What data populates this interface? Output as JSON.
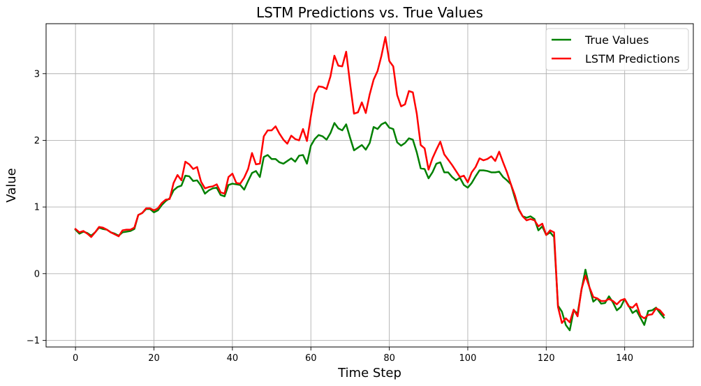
{
  "chart_data": {
    "type": "line",
    "title": "LSTM Predictions vs. True Values",
    "xlabel": "Time Step",
    "ylabel": "Value",
    "xlim": [
      -7.5,
      157.5
    ],
    "ylim": [
      -1.1,
      3.75
    ],
    "xticks": [
      0,
      20,
      40,
      60,
      80,
      100,
      120,
      140
    ],
    "yticks": [
      -1,
      0,
      1,
      2,
      3
    ],
    "grid": true,
    "legend_position": "top-right",
    "series": [
      {
        "name": "True Values",
        "color": "#008000",
        "values": [
          0.66,
          0.6,
          0.63,
          0.61,
          0.57,
          0.62,
          0.69,
          0.67,
          0.66,
          0.62,
          0.6,
          0.57,
          0.62,
          0.63,
          0.64,
          0.67,
          0.88,
          0.91,
          0.97,
          0.97,
          0.92,
          0.95,
          1.03,
          1.09,
          1.13,
          1.25,
          1.3,
          1.32,
          1.47,
          1.46,
          1.39,
          1.4,
          1.32,
          1.2,
          1.25,
          1.28,
          1.29,
          1.18,
          1.16,
          1.33,
          1.35,
          1.34,
          1.33,
          1.26,
          1.39,
          1.51,
          1.54,
          1.45,
          1.75,
          1.78,
          1.72,
          1.72,
          1.67,
          1.65,
          1.69,
          1.73,
          1.68,
          1.77,
          1.78,
          1.65,
          1.92,
          2.02,
          2.08,
          2.06,
          2.01,
          2.11,
          2.26,
          2.18,
          2.15,
          2.24,
          2.04,
          1.85,
          1.89,
          1.93,
          1.86,
          1.96,
          2.2,
          2.17,
          2.24,
          2.27,
          2.19,
          2.17,
          1.97,
          1.92,
          1.96,
          2.03,
          2.01,
          1.82,
          1.58,
          1.57,
          1.43,
          1.52,
          1.65,
          1.67,
          1.52,
          1.52,
          1.45,
          1.4,
          1.44,
          1.33,
          1.29,
          1.36,
          1.46,
          1.55,
          1.55,
          1.54,
          1.52,
          1.52,
          1.53,
          1.45,
          1.4,
          1.34,
          1.14,
          0.96,
          0.86,
          0.84,
          0.86,
          0.82,
          0.65,
          0.71,
          0.58,
          0.62,
          0.55,
          -0.48,
          -0.57,
          -0.77,
          -0.85,
          -0.55,
          -0.6,
          -0.24,
          0.06,
          -0.2,
          -0.42,
          -0.37,
          -0.45,
          -0.44,
          -0.34,
          -0.43,
          -0.55,
          -0.5,
          -0.38,
          -0.48,
          -0.59,
          -0.55,
          -0.66,
          -0.77,
          -0.56,
          -0.55,
          -0.51,
          -0.59,
          -0.66
        ]
      },
      {
        "name": "LSTM Predictions",
        "color": "#ff0000",
        "values": [
          0.67,
          0.62,
          0.64,
          0.6,
          0.55,
          0.62,
          0.7,
          0.69,
          0.66,
          0.62,
          0.59,
          0.56,
          0.65,
          0.66,
          0.66,
          0.69,
          0.88,
          0.91,
          0.98,
          0.98,
          0.95,
          0.98,
          1.06,
          1.11,
          1.12,
          1.36,
          1.48,
          1.4,
          1.68,
          1.64,
          1.57,
          1.6,
          1.38,
          1.28,
          1.3,
          1.31,
          1.34,
          1.22,
          1.2,
          1.45,
          1.5,
          1.36,
          1.35,
          1.44,
          1.57,
          1.81,
          1.64,
          1.65,
          2.06,
          2.15,
          2.15,
          2.21,
          2.1,
          2.01,
          1.95,
          2.07,
          2.02,
          2.0,
          2.17,
          1.99,
          2.36,
          2.7,
          2.81,
          2.8,
          2.77,
          2.96,
          3.27,
          3.12,
          3.11,
          3.33,
          2.85,
          2.4,
          2.42,
          2.57,
          2.41,
          2.69,
          2.91,
          3.04,
          3.27,
          3.55,
          3.19,
          3.11,
          2.68,
          2.51,
          2.54,
          2.74,
          2.72,
          2.4,
          1.93,
          1.88,
          1.56,
          1.73,
          1.86,
          1.98,
          1.79,
          1.71,
          1.63,
          1.54,
          1.45,
          1.47,
          1.37,
          1.52,
          1.6,
          1.73,
          1.7,
          1.72,
          1.76,
          1.69,
          1.83,
          1.67,
          1.52,
          1.34,
          1.18,
          0.97,
          0.86,
          0.8,
          0.82,
          0.8,
          0.71,
          0.75,
          0.58,
          0.65,
          0.62,
          -0.5,
          -0.74,
          -0.67,
          -0.73,
          -0.54,
          -0.64,
          -0.23,
          -0.03,
          -0.2,
          -0.35,
          -0.37,
          -0.41,
          -0.41,
          -0.38,
          -0.41,
          -0.46,
          -0.4,
          -0.38,
          -0.49,
          -0.51,
          -0.45,
          -0.63,
          -0.67,
          -0.62,
          -0.61,
          -0.52,
          -0.55,
          -0.62
        ]
      }
    ]
  }
}
